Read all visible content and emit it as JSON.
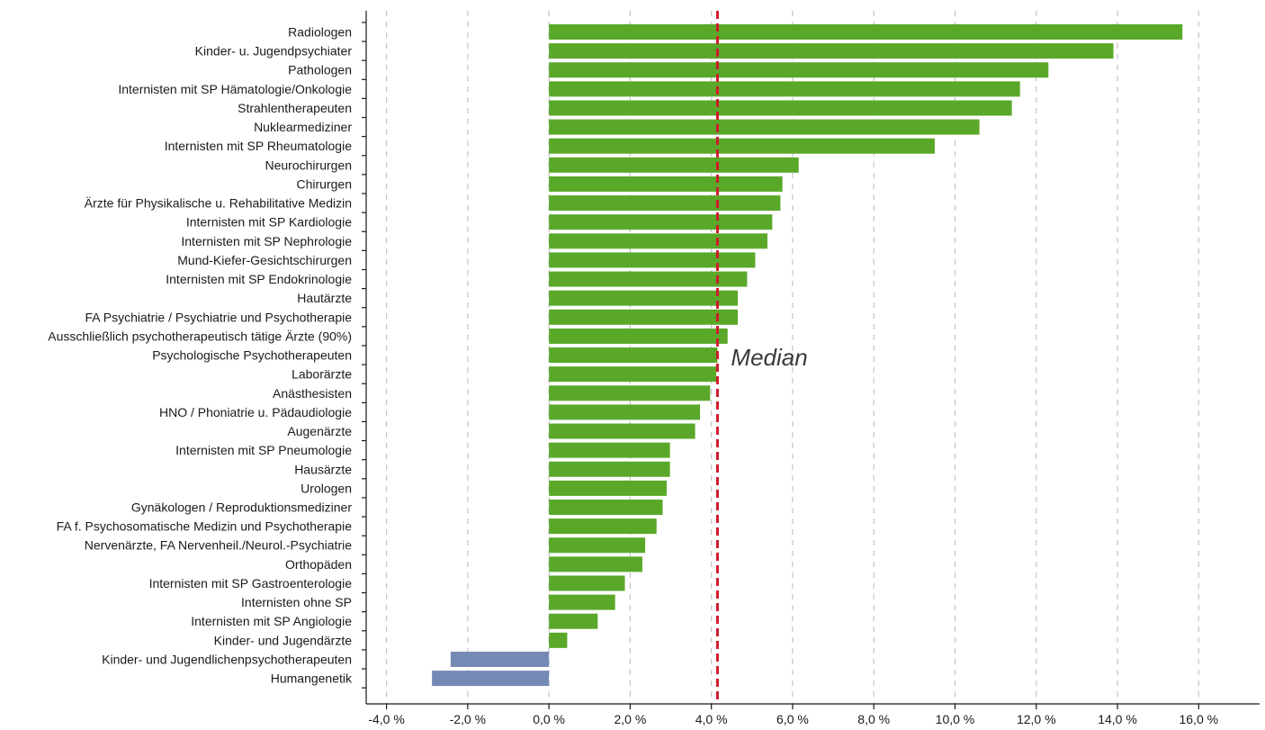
{
  "chart_data": {
    "type": "bar",
    "orientation": "horizontal",
    "categories": [
      "Radiologen",
      "Kinder- u. Jugendpsychiater",
      "Pathologen",
      "Internisten mit SP Hämatologie/Onkologie",
      "Strahlentherapeuten",
      "Nuklearmediziner",
      "Internisten mit SP Rheumatologie",
      "Neurochirurgen",
      "Chirurgen",
      "Ärzte für Physikalische u. Rehabilitative Medizin",
      "Internisten mit SP Kardiologie",
      "Internisten mit SP Nephrologie",
      "Mund-Kiefer-Gesichtschirurgen",
      "Internisten mit SP Endokrinologie",
      "Hautärzte",
      "FA Psychiatrie / Psychiatrie und Psychotherapie",
      "Ausschließlich psychotherapeutisch tätige Ärzte (90%)",
      "Psychologische Psychotherapeuten",
      "Laborärzte",
      "Anästhesisten",
      "HNO / Phoniatrie u. Pädaudiologie",
      "Augenärzte",
      "Internisten mit SP Pneumologie",
      "Hausärzte",
      "Urologen",
      "Gynäkologen / Reproduktionsmediziner",
      "FA f. Psychosomatische Medizin und Psychotherapie",
      "Nervenärzte, FA Nervenheil./Neurol.-Psychiatrie",
      "Orthopäden",
      "Internisten mit SP Gastroenterologie",
      "Internisten ohne SP",
      "Internisten mit SP Angiologie",
      "Kinder- und Jugendärzte",
      "Kinder- und Jugendlichenpsychotherapeuten",
      "Humangenetik"
    ],
    "values": [
      15.6,
      13.9,
      12.3,
      11.6,
      11.4,
      10.6,
      9.5,
      6.15,
      5.75,
      5.7,
      5.5,
      5.38,
      5.08,
      4.88,
      4.65,
      4.65,
      4.4,
      4.15,
      4.12,
      3.97,
      3.72,
      3.6,
      2.98,
      2.98,
      2.9,
      2.8,
      2.65,
      2.37,
      2.3,
      1.87,
      1.63,
      1.2,
      0.45,
      -2.42,
      -2.88
    ],
    "positive_color": "#5aa829",
    "negative_color": "#7589b5",
    "xlim": [
      -4.5,
      17.5
    ],
    "x_ticks": [
      -4,
      -2,
      0,
      2,
      4,
      6,
      8,
      10,
      12,
      14,
      16
    ],
    "x_tick_labels": [
      "-4,0 %",
      "-2,0 %",
      "0,0 %",
      "2,0 %",
      "4,0 %",
      "6,0 %",
      "8,0 %",
      "10,0 %",
      "12,0 %",
      "14,0 %",
      "16,0 %"
    ],
    "grid": "vertical dashed",
    "median": {
      "value": 4.15,
      "label": "Median",
      "color": "#d0192b"
    },
    "title": "",
    "xlabel": "",
    "ylabel": ""
  }
}
